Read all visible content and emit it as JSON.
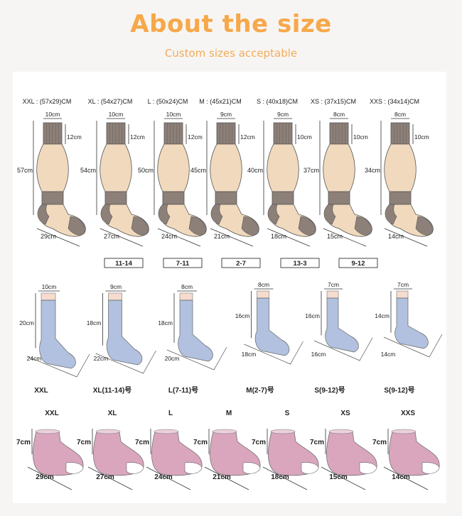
{
  "header": {
    "title": "About the size",
    "subtitle": "Custom sizes acceptable"
  },
  "colors": {
    "title": "#f6a84a",
    "subtitle": "#f3ac5a",
    "long_sock_body": "#f0d9bd",
    "long_sock_band": "#8c8079",
    "mid_sock": "#b1c1df",
    "mid_sock_band": "#f5dccf",
    "ankle_sock": "#d9a6be"
  },
  "long_socks": [
    {
      "label": "XXL : (57x29)CM",
      "top": "10cm",
      "band": "12cm",
      "height": "57cm",
      "foot": "29cm"
    },
    {
      "label": "XL : (54x27)CM",
      "top": "10cm",
      "band": "12cm",
      "height": "54cm",
      "foot": "27cm"
    },
    {
      "label": "L : (50x24)CM",
      "top": "10cm",
      "band": "12cm",
      "height": "50cm",
      "foot": "24cm"
    },
    {
      "label": "M : (45x21)CM",
      "top": "9cm",
      "band": "12cm",
      "height": "45cm",
      "foot": "21cm"
    },
    {
      "label": "S : (40x18)CM",
      "top": "9cm",
      "band": "10cm",
      "height": "40cm",
      "foot": "18cm"
    },
    {
      "label": "XS : (37x15)CM",
      "top": "8cm",
      "band": "10cm",
      "height": "37cm",
      "foot": "15cm"
    },
    {
      "label": "XXS : (34x14)CM",
      "top": "8cm",
      "band": "10cm",
      "height": "34cm",
      "foot": "14cm"
    }
  ],
  "age_boxes": [
    "11-14",
    "7-11",
    "2-7",
    "13-3",
    "9-12"
  ],
  "mid_socks": [
    {
      "top": "10cm",
      "height": "20cm",
      "foot": "24cm",
      "label": "XXL"
    },
    {
      "top": "9cm",
      "height": "18cm",
      "foot": "22cm",
      "label": "XL(11-14)号"
    },
    {
      "top": "8cm",
      "height": "18cm",
      "foot": "20cm",
      "label": "L(7-11)号"
    },
    {
      "top": "8cm",
      "height": "16cm",
      "foot": "18cm",
      "label": "M(2-7)号"
    },
    {
      "top": "7cm",
      "height": "16cm",
      "foot": "16cm",
      "label": "S(9-12)号"
    },
    {
      "top": "7cm",
      "height": "14cm",
      "foot": "14cm",
      "label": "S(9-12)号"
    }
  ],
  "ankle_socks": [
    {
      "label": "XXL",
      "height": "7cm",
      "foot": "29cm"
    },
    {
      "label": "XL",
      "height": "7cm",
      "foot": "27cm"
    },
    {
      "label": "L",
      "height": "7cm",
      "foot": "24cm"
    },
    {
      "label": "M",
      "height": "7cm",
      "foot": "21cm"
    },
    {
      "label": "S",
      "height": "7cm",
      "foot": "18cm"
    },
    {
      "label": "XS",
      "height": "7cm",
      "foot": "15cm"
    },
    {
      "label": "XXS",
      "height": "7cm",
      "foot": "14cm"
    }
  ]
}
